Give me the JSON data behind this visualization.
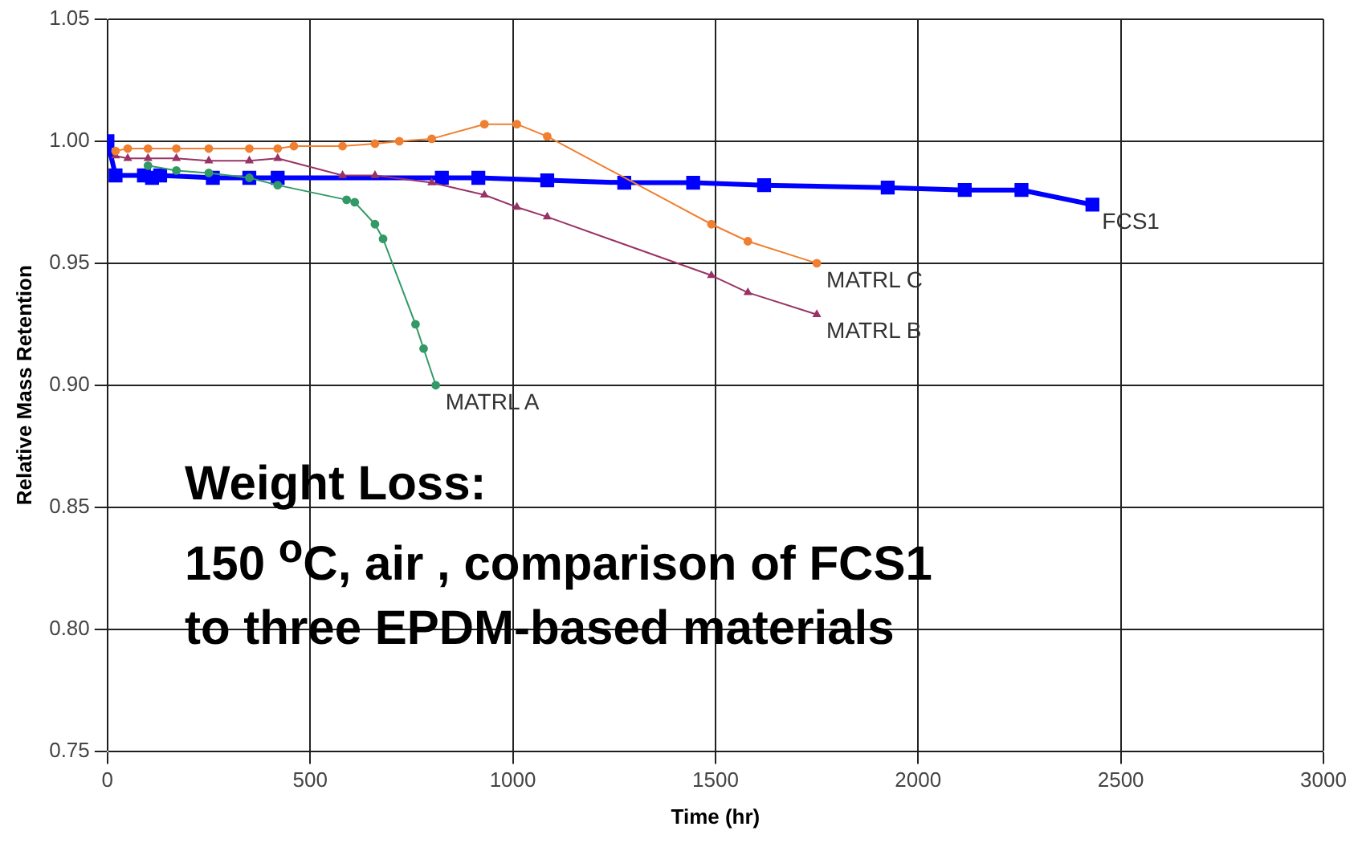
{
  "chart_data": {
    "type": "line",
    "xlabel": "Time (hr)",
    "ylabel": "Relative Mass Retention",
    "xlim": [
      0,
      3000
    ],
    "xticks": [
      0,
      500,
      1000,
      1500,
      2000,
      2500,
      3000
    ],
    "ylim": [
      0.75,
      1.05
    ],
    "yticks": [
      {
        "value": 0.75,
        "label": "0.75"
      },
      {
        "value": 0.8,
        "label": "0.80"
      },
      {
        "value": 0.85,
        "label": "0.85"
      },
      {
        "value": 0.9,
        "label": "0.90"
      },
      {
        "value": 0.95,
        "label": "0.95"
      },
      {
        "value": 1.0,
        "label": "1.00"
      },
      {
        "value": 1.05,
        "label": "1.05"
      }
    ],
    "grid": true,
    "legend": false,
    "line_style": "solid",
    "annotations": [
      "Weight Loss:\n150 $^{o}$C, air , comparison of FCS1\nto three EPDM-based materials"
    ],
    "series": [
      {
        "name": "MATRL C",
        "color": "#f07f30",
        "marker": "circle",
        "x": [
          20,
          50,
          100,
          170,
          250,
          350,
          420,
          460,
          580,
          660,
          720,
          800,
          930,
          1010,
          1085,
          1490,
          1580,
          1750
        ],
        "values": [
          0.996,
          0.997,
          0.997,
          0.997,
          0.997,
          0.997,
          0.997,
          0.998,
          0.998,
          0.999,
          1.0,
          1.001,
          1.007,
          1.007,
          1.002,
          0.966,
          0.959,
          0.95
        ]
      },
      {
        "name": "MATRL B",
        "color": "#993366",
        "marker": "triangle",
        "x": [
          20,
          50,
          100,
          170,
          250,
          350,
          420,
          580,
          660,
          800,
          930,
          1010,
          1085,
          1490,
          1580,
          1750
        ],
        "values": [
          0.994,
          0.993,
          0.993,
          0.993,
          0.992,
          0.992,
          0.993,
          0.986,
          0.986,
          0.983,
          0.978,
          0.973,
          0.969,
          0.945,
          0.938,
          0.929
        ]
      },
      {
        "name": "MATRL A",
        "color": "#339966",
        "marker": "circle",
        "x": [
          100,
          170,
          250,
          350,
          420,
          590,
          610,
          660,
          680,
          760,
          780,
          810
        ],
        "values": [
          0.99,
          0.988,
          0.987,
          0.985,
          0.982,
          0.976,
          0.975,
          0.966,
          0.96,
          0.925,
          0.915,
          0.9
        ]
      },
      {
        "name": "FCS1",
        "color": "#0000ff",
        "marker": "square",
        "x": [
          0,
          20,
          90,
          110,
          130,
          260,
          350,
          420,
          825,
          915,
          1085,
          1275,
          1445,
          1620,
          1925,
          2115,
          2255,
          2430
        ],
        "values": [
          1.0,
          0.986,
          0.986,
          0.985,
          0.986,
          0.985,
          0.985,
          0.985,
          0.985,
          0.985,
          0.984,
          0.983,
          0.983,
          0.982,
          0.981,
          0.98,
          0.98,
          0.974
        ]
      }
    ]
  }
}
